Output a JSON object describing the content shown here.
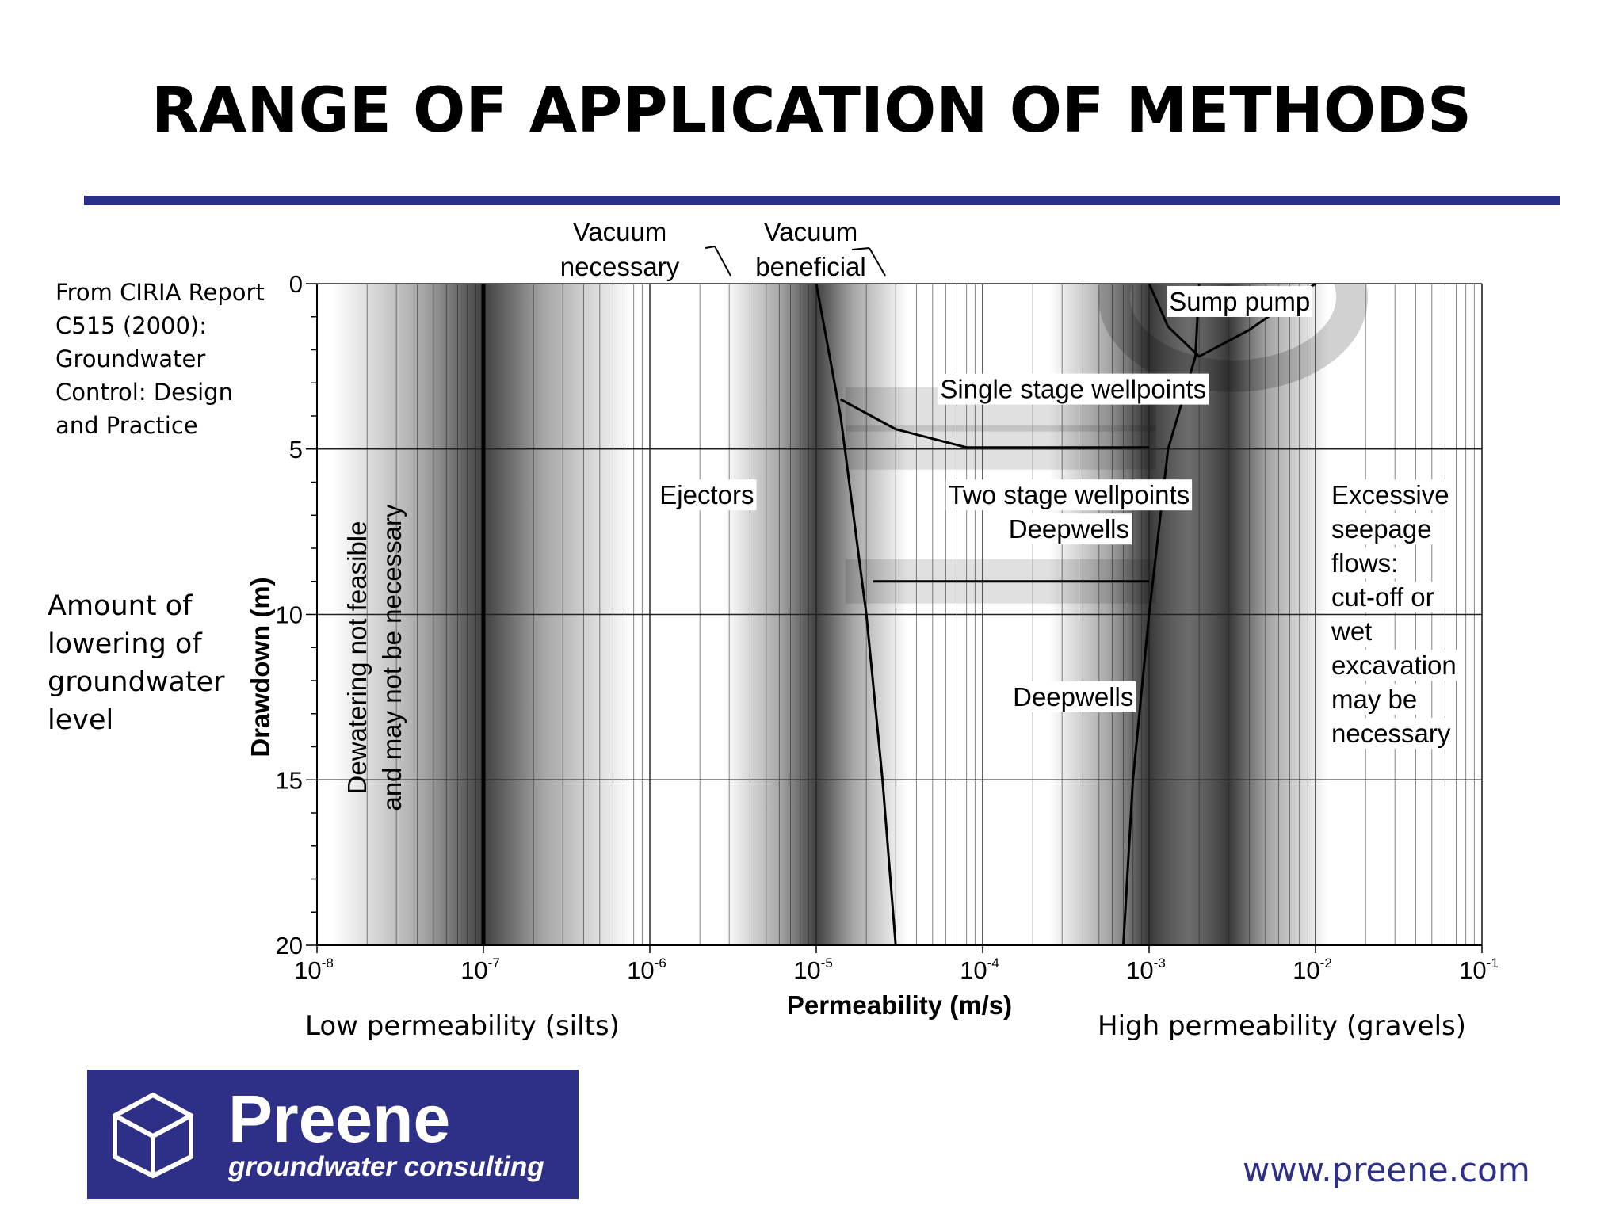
{
  "slide": {
    "title": "RANGE OF APPLICATION OF METHODS",
    "source_lines": [
      "From CIRIA Report",
      "C515 (2000):",
      "Groundwater",
      "Control: Design",
      "and Practice"
    ],
    "y_annotation_lines": [
      "Amount of",
      "lowering of",
      "groundwater",
      "level"
    ],
    "low_note": "Low permeability (silts)",
    "high_note": "High permeability (gravels)",
    "logo": {
      "name": "Preene",
      "tagline": "groundwater consulting"
    },
    "website": "www.preene.com",
    "colors": {
      "rule": "#2b2e8a",
      "logo_bg": "#2e2f86",
      "website": "#2e2f86"
    }
  },
  "chart_data": {
    "type": "region-map",
    "xlabel": "Permeability (m/s)",
    "ylabel": "Drawdown (m)",
    "x_scale": "log",
    "xlim": [
      1e-08,
      0.1
    ],
    "ylim": [
      0,
      20
    ],
    "y_inverted": true,
    "x_ticks": [
      {
        "value": 1e-08,
        "base": "10",
        "exp": "-8"
      },
      {
        "value": 1e-07,
        "base": "10",
        "exp": "-7"
      },
      {
        "value": 1e-06,
        "base": "10",
        "exp": "-6"
      },
      {
        "value": 1e-05,
        "base": "10",
        "exp": "-5"
      },
      {
        "value": 0.0001,
        "base": "10",
        "exp": "-4"
      },
      {
        "value": 0.001,
        "base": "10",
        "exp": "-3"
      },
      {
        "value": 0.01,
        "base": "10",
        "exp": "-2"
      },
      {
        "value": 0.1,
        "base": "10",
        "exp": "-1"
      }
    ],
    "y_ticks": [
      0,
      5,
      10,
      15,
      20
    ],
    "y_minor_step": 1,
    "boundaries": [
      {
        "name": "lower-limit",
        "points": [
          [
            1e-07,
            0
          ],
          [
            1e-07,
            20
          ]
        ]
      },
      {
        "name": "ejector-limit",
        "points": [
          [
            1e-05,
            0
          ],
          [
            1.4e-05,
            4
          ],
          [
            2e-05,
            10
          ],
          [
            2.5e-05,
            15
          ],
          [
            3e-05,
            20
          ]
        ]
      },
      {
        "name": "upper-limit",
        "points": [
          [
            0.002,
            0
          ],
          [
            0.0019,
            2.2
          ],
          [
            0.0013,
            5
          ],
          [
            0.001,
            10
          ],
          [
            0.0008,
            15
          ],
          [
            0.0007,
            20
          ]
        ]
      },
      {
        "name": "single-stage-lower",
        "points": [
          [
            1.4e-05,
            3.5
          ],
          [
            3e-05,
            4.4
          ],
          [
            8e-05,
            4.95
          ],
          [
            0.001,
            4.95
          ]
        ]
      },
      {
        "name": "two-stage-lower",
        "points": [
          [
            2.2e-05,
            9
          ],
          [
            0.001,
            9
          ]
        ]
      },
      {
        "name": "sump-pump",
        "points": [
          [
            0.001,
            0
          ],
          [
            0.0013,
            1.3
          ],
          [
            0.002,
            2.2
          ],
          [
            0.004,
            1.4
          ],
          [
            0.01,
            0
          ]
        ]
      }
    ],
    "region_labels": [
      {
        "lines": [
          "Ejectors"
        ],
        "x": 2.2e-06,
        "y": 6.4
      },
      {
        "lines": [
          "Single stage wellpoints"
        ],
        "x": 0.00035,
        "y": 3.2
      },
      {
        "lines": [
          "Two stage wellpoints",
          "Deepwells"
        ],
        "x": 0.00033,
        "y": 6.4
      },
      {
        "lines": [
          "Deepwells"
        ],
        "x": 0.00035,
        "y": 12.5
      },
      {
        "lines": [
          "Sump pump"
        ],
        "x": 0.0035,
        "y": 0.55
      },
      {
        "lines": [
          "Excessive",
          "seepage",
          "flows:",
          "cut-off or",
          "wet",
          "excavation",
          "may be",
          "necessary"
        ],
        "x": 0.01,
        "y": 6.4,
        "align": "start"
      }
    ],
    "vertical_label": [
      "Dewatering not feasible",
      "and may not be necessary"
    ],
    "vacuum_labels": [
      {
        "lines": [
          "Vacuum",
          "necessary"
        ]
      },
      {
        "lines": [
          "Vacuum",
          "beneficial"
        ]
      }
    ],
    "bands": [
      {
        "x": 1e-07,
        "halfwidth_decades": 0.9
      },
      {
        "x": 1e-05,
        "halfwidth_decades": 0.55
      },
      {
        "x": 0.001,
        "halfwidth_decades": 0.6
      },
      {
        "x": 0.003,
        "halfwidth_decades": 0.6
      }
    ]
  }
}
